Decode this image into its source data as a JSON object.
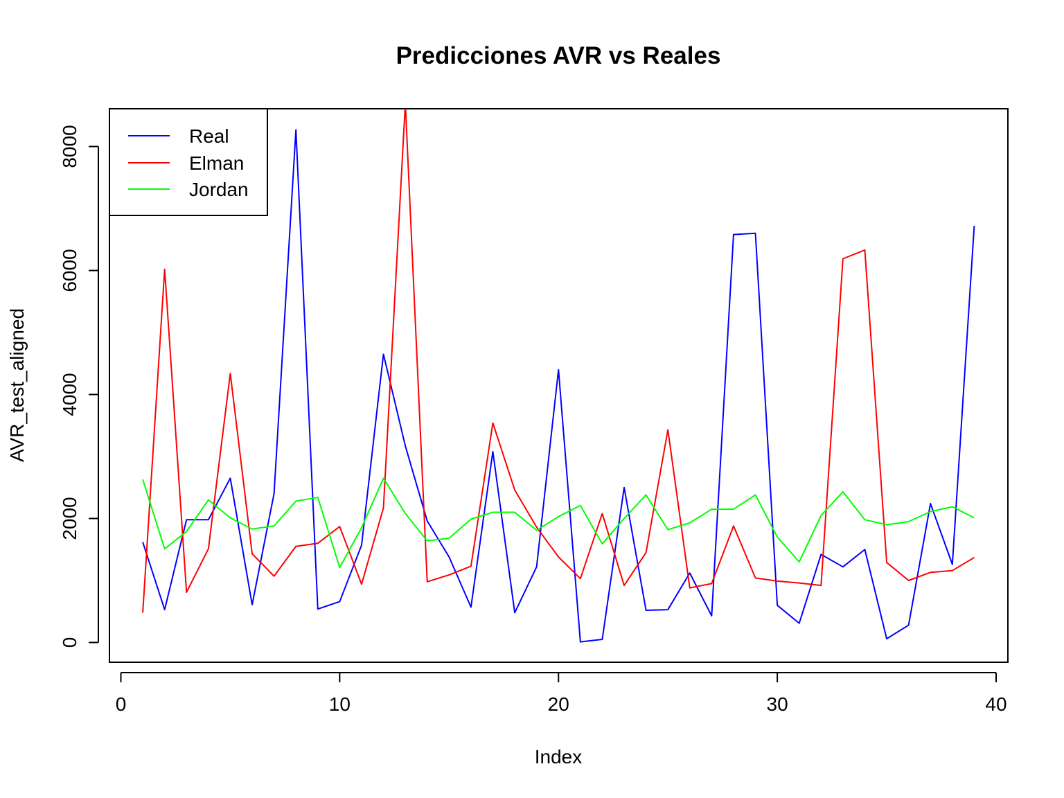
{
  "chart_data": {
    "type": "line",
    "title": "Predicciones AVR vs Reales",
    "xlabel": "Index",
    "ylabel": "AVR_test_aligned",
    "xlim": [
      0,
      40
    ],
    "ylim": [
      0,
      8500
    ],
    "xticks": [
      0,
      10,
      20,
      30,
      40
    ],
    "yticks": [
      0,
      2000,
      4000,
      6000,
      8000
    ],
    "grid": false,
    "legend_position": "top-left",
    "x": [
      1,
      2,
      3,
      4,
      5,
      6,
      7,
      8,
      9,
      10,
      11,
      12,
      13,
      14,
      15,
      16,
      17,
      18,
      19,
      20,
      21,
      22,
      23,
      24,
      25,
      26,
      27,
      28,
      29,
      30,
      31,
      32,
      33,
      34,
      35,
      36,
      37,
      38,
      39
    ],
    "series": [
      {
        "name": "Real",
        "color": "#0000ff",
        "values": [
          1620,
          530,
          1980,
          1980,
          2650,
          610,
          2400,
          8270,
          540,
          660,
          1570,
          4650,
          3170,
          1960,
          1380,
          570,
          3080,
          480,
          1220,
          4400,
          10,
          50,
          2500,
          520,
          530,
          1120,
          430,
          6580,
          6600,
          600,
          310,
          1420,
          1220,
          1500,
          60,
          280,
          2240,
          1260,
          6720
        ]
      },
      {
        "name": "Elman",
        "color": "#ff0000",
        "values": [
          480,
          6020,
          810,
          1510,
          4340,
          1430,
          1070,
          1550,
          1600,
          1870,
          940,
          2170,
          8700,
          980,
          1090,
          1230,
          3540,
          2460,
          1860,
          1380,
          1030,
          2080,
          920,
          1450,
          3430,
          880,
          950,
          1880,
          1040,
          990,
          960,
          920,
          6190,
          6330,
          1290,
          1000,
          1130,
          1160,
          1370
        ]
      },
      {
        "name": "Jordan",
        "color": "#00ff00",
        "values": [
          2630,
          1510,
          1790,
          2300,
          2010,
          1830,
          1880,
          2280,
          2340,
          1210,
          1850,
          2650,
          2080,
          1640,
          1680,
          1990,
          2100,
          2100,
          1810,
          2030,
          2210,
          1590,
          2000,
          2380,
          1820,
          1930,
          2150,
          2150,
          2380,
          1700,
          1300,
          2050,
          2430,
          1980,
          1900,
          1950,
          2110,
          2190,
          2010
        ]
      }
    ]
  }
}
